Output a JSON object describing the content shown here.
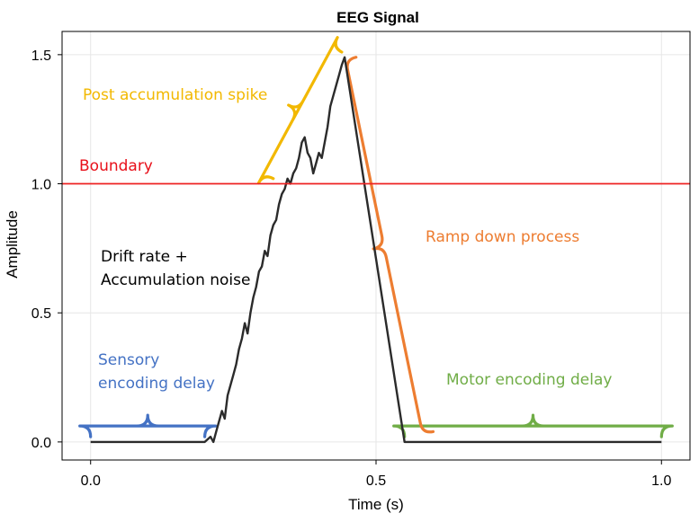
{
  "chart_data": {
    "type": "line",
    "title": "EEG Signal",
    "xlabel": "Time (s)",
    "ylabel": "Amplitude",
    "xlim": [
      -0.05,
      1.05
    ],
    "ylim": [
      -0.07,
      1.59
    ],
    "xticks": [
      0.0,
      0.5,
      1.0
    ],
    "xtick_labels": [
      "0.0",
      "0.5",
      "1.0"
    ],
    "yticks": [
      0.0,
      0.5,
      1.0,
      1.5
    ],
    "ytick_labels": [
      "0.0",
      "0.5",
      "1.0",
      "1.5"
    ],
    "grid": true,
    "series": [
      {
        "color": "#2b2b2b",
        "x": [
          0.0,
          0.2,
          0.21,
          0.215,
          0.22,
          0.225,
          0.23,
          0.235,
          0.24,
          0.245,
          0.25,
          0.255,
          0.26,
          0.265,
          0.27,
          0.275,
          0.28,
          0.285,
          0.29,
          0.295,
          0.3,
          0.305,
          0.31,
          0.315,
          0.32,
          0.325,
          0.33,
          0.335,
          0.34,
          0.345,
          0.35,
          0.355,
          0.36,
          0.365,
          0.37,
          0.375,
          0.38,
          0.385,
          0.39,
          0.395,
          0.4,
          0.405,
          0.41,
          0.415,
          0.42,
          0.425,
          0.43,
          0.435,
          0.44,
          0.445,
          0.55,
          1.0
        ],
        "y": [
          0.0,
          0.0,
          0.02,
          0.0,
          0.04,
          0.08,
          0.12,
          0.09,
          0.18,
          0.22,
          0.26,
          0.3,
          0.36,
          0.4,
          0.46,
          0.42,
          0.5,
          0.56,
          0.6,
          0.66,
          0.68,
          0.74,
          0.72,
          0.8,
          0.84,
          0.86,
          0.92,
          0.96,
          0.98,
          1.02,
          1.0,
          1.04,
          1.06,
          1.1,
          1.16,
          1.18,
          1.12,
          1.1,
          1.04,
          1.08,
          1.12,
          1.1,
          1.16,
          1.22,
          1.3,
          1.34,
          1.38,
          1.42,
          1.46,
          1.49,
          0.0,
          0.0
        ]
      },
      {
        "name": "Boundary",
        "color": "#ee2222",
        "x": [
          -0.05,
          1.05
        ],
        "y": [
          1.0,
          1.0
        ]
      }
    ],
    "annotations": [
      {
        "text": "Boundary",
        "color": "#e8101a"
      },
      {
        "text": "Post accumulation spike",
        "color": "#f2b800"
      },
      {
        "text": "Ramp down process",
        "color": "#ed7d31"
      },
      {
        "text": "Drift rate +",
        "color": "#000000"
      },
      {
        "text": "Accumulation noise",
        "color": "#000000"
      },
      {
        "text": "Sensory",
        "color": "#4472c4"
      },
      {
        "text": "encoding delay",
        "color": "#4472c4"
      },
      {
        "text": "Motor encoding delay",
        "color": "#70ad47"
      }
    ],
    "braces": [
      {
        "label": "sensory",
        "color": "#4472c4",
        "x": [
          0.0,
          0.2
        ],
        "y": 0.09
      },
      {
        "label": "motor",
        "color": "#70ad47",
        "x": [
          0.55,
          1.0
        ],
        "y": 0.09
      },
      {
        "label": "spike",
        "color": "#f2b800",
        "x": [
          0.32,
          0.44
        ],
        "y": [
          1.02,
          1.51
        ]
      },
      {
        "label": "ramp",
        "color": "#ed7d31",
        "x": [
          0.465,
          0.6
        ],
        "y": [
          1.49,
          0.04
        ]
      }
    ]
  }
}
